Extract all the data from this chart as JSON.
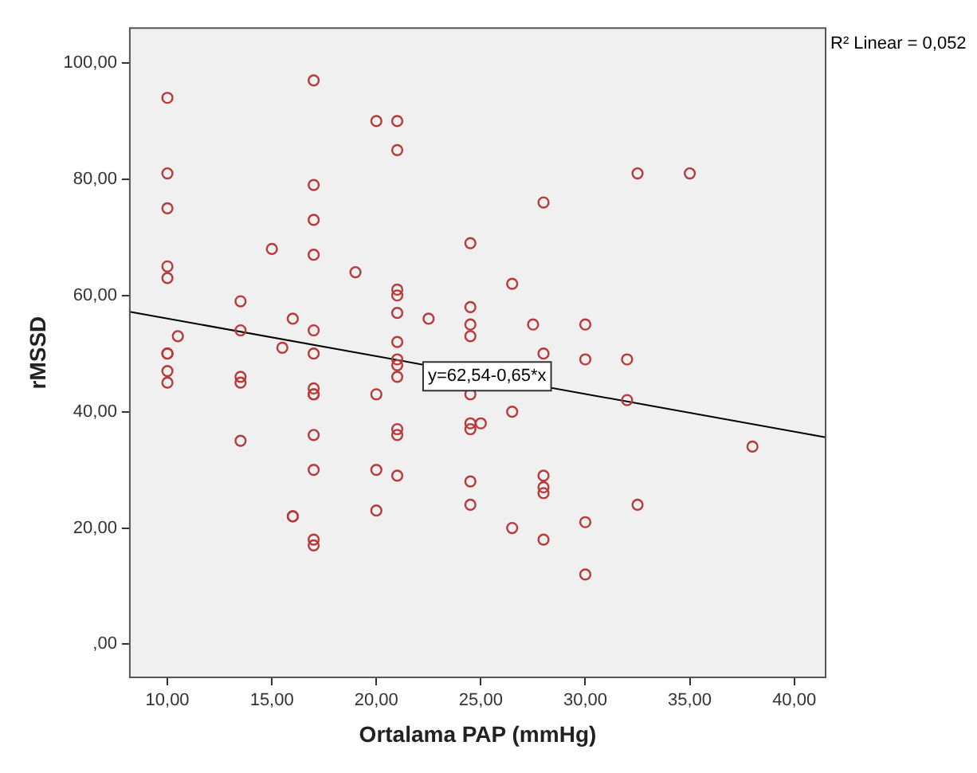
{
  "chart_data": {
    "type": "scatter",
    "xlabel": "Ortalama PAP (mmHg)",
    "ylabel": "rMSSD",
    "xlim": [
      8.2,
      41.5
    ],
    "ylim": [
      -5.7,
      106
    ],
    "xticks": [
      {
        "value": 10,
        "label": "10,00"
      },
      {
        "value": 15,
        "label": "15,00"
      },
      {
        "value": 20,
        "label": "20,00"
      },
      {
        "value": 25,
        "label": "25,00"
      },
      {
        "value": 30,
        "label": "30,00"
      },
      {
        "value": 35,
        "label": "35,00"
      },
      {
        "value": 40,
        "label": "40,00"
      }
    ],
    "yticks": [
      {
        "value": 0,
        "label": ",00"
      },
      {
        "value": 20,
        "label": "20,00"
      },
      {
        "value": 40,
        "label": "40,00"
      },
      {
        "value": 60,
        "label": "60,00"
      },
      {
        "value": 80,
        "label": "80,00"
      },
      {
        "value": 100,
        "label": "100,00"
      }
    ],
    "series": [
      {
        "type": "scatter",
        "marker": "circle",
        "color": "#b8393a",
        "x": [
          10,
          10,
          10,
          10,
          10,
          10,
          10,
          10,
          10,
          10.5,
          13.5,
          13.5,
          13.5,
          13.5,
          13.5,
          15,
          15.5,
          16,
          16,
          16,
          17,
          17,
          17,
          17,
          17,
          17,
          17,
          17,
          17,
          17,
          17,
          17,
          17,
          19,
          20,
          20,
          20,
          20,
          21,
          21,
          21,
          21,
          21,
          21,
          21,
          21,
          21,
          21,
          21,
          21,
          22.5,
          24.5,
          24.5,
          24.5,
          24.5,
          24.5,
          24.5,
          24.5,
          24.5,
          24.5,
          25,
          26.5,
          26.5,
          26.5,
          27.5,
          28,
          28,
          28,
          28,
          28,
          28,
          30,
          30,
          30,
          30,
          32,
          32,
          32.5,
          32.5,
          35,
          38
        ],
        "values": [
          94,
          81,
          75,
          65,
          63,
          50,
          50,
          47,
          45,
          53,
          59,
          54,
          46,
          45,
          35,
          68,
          51,
          56,
          22,
          22,
          97,
          79,
          73,
          67,
          54,
          50,
          44,
          43,
          43,
          36,
          30,
          18,
          17,
          64,
          90,
          43,
          30,
          23,
          90,
          85,
          61,
          60,
          57,
          52,
          49,
          48,
          46,
          37,
          36,
          29,
          56,
          69,
          58,
          55,
          53,
          43,
          38,
          37,
          28,
          24,
          38,
          62,
          40,
          20,
          55,
          76,
          50,
          29,
          27,
          26,
          18,
          55,
          49,
          21,
          12,
          49,
          42,
          81,
          24,
          81,
          34
        ]
      },
      {
        "type": "line",
        "color": "#000000",
        "x": [
          8.2,
          41.5
        ],
        "values": [
          57.2,
          35.6
        ]
      }
    ],
    "annotations": [
      {
        "text": "y=62,54-0,65*x",
        "x": 25.3,
        "y": 46.1
      },
      "R² Linear = 0,052"
    ]
  }
}
